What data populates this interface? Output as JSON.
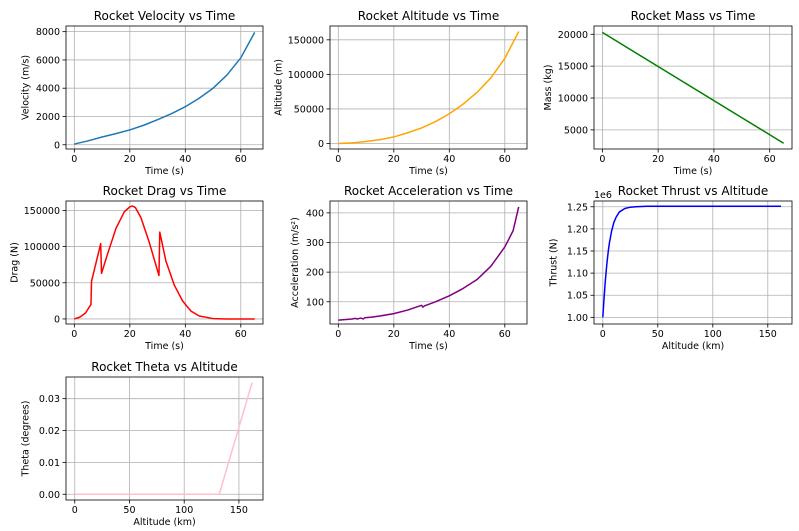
{
  "chart_data": [
    {
      "type": "line",
      "title": "Rocket Velocity vs Time",
      "xlabel": "Time (s)",
      "ylabel": "Velocity (m/s)",
      "xlim": [
        -3,
        68
      ],
      "ylim": [
        -300,
        8400
      ],
      "xticks": [
        0,
        20,
        40,
        60
      ],
      "yticks": [
        0,
        2000,
        4000,
        6000,
        8000
      ],
      "xtick_labels": [
        "0",
        "20",
        "40",
        "60"
      ],
      "ytick_labels": [
        "0",
        "2000",
        "4000",
        "6000",
        "8000"
      ],
      "offset_label": "",
      "color": "#1f77b4",
      "grid": true,
      "series": [
        {
          "name": "velocity",
          "x": [
            0,
            5,
            10,
            15,
            20,
            25,
            30,
            35,
            40,
            45,
            50,
            55,
            60,
            65
          ],
          "y": [
            50,
            280,
            550,
            790,
            1050,
            1380,
            1770,
            2200,
            2690,
            3290,
            4000,
            4930,
            6150,
            7950
          ]
        }
      ]
    },
    {
      "type": "line",
      "title": "Rocket Altitude vs Time",
      "xlabel": "Time (s)",
      "ylabel": "Altitude (m)",
      "xlim": [
        -3,
        68
      ],
      "ylim": [
        -8000,
        170000
      ],
      "xticks": [
        0,
        20,
        40,
        60
      ],
      "yticks": [
        0,
        50000,
        100000,
        150000
      ],
      "xtick_labels": [
        "0",
        "20",
        "40",
        "60"
      ],
      "ytick_labels": [
        "0",
        "50000",
        "100000",
        "150000"
      ],
      "offset_label": "",
      "color": "#ffa500",
      "grid": true,
      "series": [
        {
          "name": "altitude",
          "x": [
            0,
            5,
            10,
            15,
            20,
            25,
            30,
            35,
            40,
            45,
            50,
            55,
            60,
            65
          ],
          "y": [
            0,
            800,
            2800,
            5500,
            9500,
            15500,
            22500,
            31500,
            43000,
            57000,
            74000,
            95000,
            123000,
            162000
          ]
        }
      ]
    },
    {
      "type": "line",
      "title": "Rocket Mass vs Time",
      "xlabel": "Time (s)",
      "ylabel": "Mass (kg)",
      "xlim": [
        -3,
        68
      ],
      "ylim": [
        2000,
        21300
      ],
      "xticks": [
        0,
        20,
        40,
        60
      ],
      "yticks": [
        5000,
        10000,
        15000,
        20000
      ],
      "xtick_labels": [
        "0",
        "20",
        "40",
        "60"
      ],
      "ytick_labels": [
        "5000",
        "10000",
        "15000",
        "20000"
      ],
      "offset_label": "",
      "color": "#008000",
      "grid": true,
      "series": [
        {
          "name": "mass",
          "x": [
            0,
            65
          ],
          "y": [
            20300,
            2900
          ]
        }
      ]
    },
    {
      "type": "line",
      "title": "Rocket Drag vs Time",
      "xlabel": "Time (s)",
      "ylabel": "Drag (N)",
      "xlim": [
        -3,
        68
      ],
      "ylim": [
        -7000,
        163000
      ],
      "xticks": [
        0,
        20,
        40,
        60
      ],
      "yticks": [
        0,
        50000,
        100000,
        150000
      ],
      "xtick_labels": [
        "0",
        "20",
        "40",
        "60"
      ],
      "ytick_labels": [
        "0",
        "50000",
        "100000",
        "150000"
      ],
      "offset_label": "",
      "color": "#ff0000",
      "grid": true,
      "series": [
        {
          "name": "drag",
          "x": [
            0,
            2,
            4,
            6,
            6.2,
            9.5,
            9.8,
            12,
            15,
            18,
            20,
            21,
            22,
            24,
            27,
            30.5,
            30.8,
            33,
            36,
            39,
            42,
            45,
            50,
            55,
            60,
            65
          ],
          "y": [
            0,
            2500,
            8000,
            20000,
            52000,
            104000,
            63000,
            90000,
            125000,
            148000,
            155000,
            156000,
            154000,
            140000,
            106000,
            60000,
            120000,
            80000,
            47000,
            25000,
            11000,
            4000,
            500,
            0,
            0,
            0
          ]
        }
      ]
    },
    {
      "type": "line",
      "title": "Rocket Acceleration vs Time",
      "xlabel": "Time (s)",
      "ylabel": "Acceleration (m/s²)",
      "xlim": [
        -3,
        68
      ],
      "ylim": [
        25,
        440
      ],
      "xticks": [
        0,
        20,
        40,
        60
      ],
      "yticks": [
        100,
        200,
        300,
        400
      ],
      "xtick_labels": [
        "0",
        "20",
        "40",
        "60"
      ],
      "ytick_labels": [
        "100",
        "200",
        "300",
        "400"
      ],
      "offset_label": "",
      "color": "#800080",
      "grid": true,
      "series": [
        {
          "name": "acceleration",
          "x": [
            0,
            5,
            6,
            7,
            8,
            9,
            9.5,
            12,
            15,
            20,
            25,
            30,
            30.5,
            31,
            35,
            40,
            45,
            50,
            55,
            60,
            63,
            65
          ],
          "y": [
            38,
            42,
            44,
            42,
            45,
            42,
            46,
            48,
            52,
            60,
            72,
            88,
            82,
            86,
            100,
            120,
            145,
            175,
            220,
            285,
            340,
            420
          ]
        }
      ]
    },
    {
      "type": "line",
      "title": "Rocket Thrust vs Altitude",
      "xlabel": "Altitude (km)",
      "ylabel": "Thrust (N)",
      "xlim": [
        -8,
        172
      ],
      "ylim": [
        0.985,
        1.263
      ],
      "xticks": [
        0,
        50,
        100,
        150
      ],
      "yticks": [
        1.0,
        1.05,
        1.1,
        1.15,
        1.2,
        1.25
      ],
      "xtick_labels": [
        "0",
        "50",
        "100",
        "150"
      ],
      "ytick_labels": [
        "1.00",
        "1.05",
        "1.10",
        "1.15",
        "1.20",
        "1.25"
      ],
      "offset_label": "1e6",
      "color": "#0000ff",
      "grid": true,
      "series": [
        {
          "name": "thrust",
          "x": [
            0,
            1,
            2,
            3,
            4,
            5,
            6,
            8,
            10,
            12,
            15,
            20,
            25,
            30,
            40,
            50,
            60,
            80,
            100,
            130,
            162
          ],
          "y": [
            1.0,
            1.038,
            1.073,
            1.103,
            1.128,
            1.15,
            1.168,
            1.195,
            1.214,
            1.226,
            1.238,
            1.246,
            1.249,
            1.25,
            1.251,
            1.251,
            1.251,
            1.251,
            1.251,
            1.251,
            1.251
          ]
        }
      ]
    },
    {
      "type": "line",
      "title": "Rocket Theta vs Altitude",
      "xlabel": "Altitude (km)",
      "ylabel": "Theta (degrees)",
      "xlim": [
        -8,
        172
      ],
      "ylim": [
        -0.0018,
        0.0368
      ],
      "xticks": [
        0,
        50,
        100,
        150
      ],
      "yticks": [
        0.0,
        0.01,
        0.02,
        0.03
      ],
      "xtick_labels": [
        "0",
        "50",
        "100",
        "150"
      ],
      "ytick_labels": [
        "0.00",
        "0.01",
        "0.02",
        "0.03"
      ],
      "offset_label": "",
      "color": "#ffc0cb",
      "grid": true,
      "series": [
        {
          "name": "theta",
          "x": [
            0,
            132,
            162
          ],
          "y": [
            0,
            0,
            0.035
          ]
        }
      ]
    }
  ]
}
